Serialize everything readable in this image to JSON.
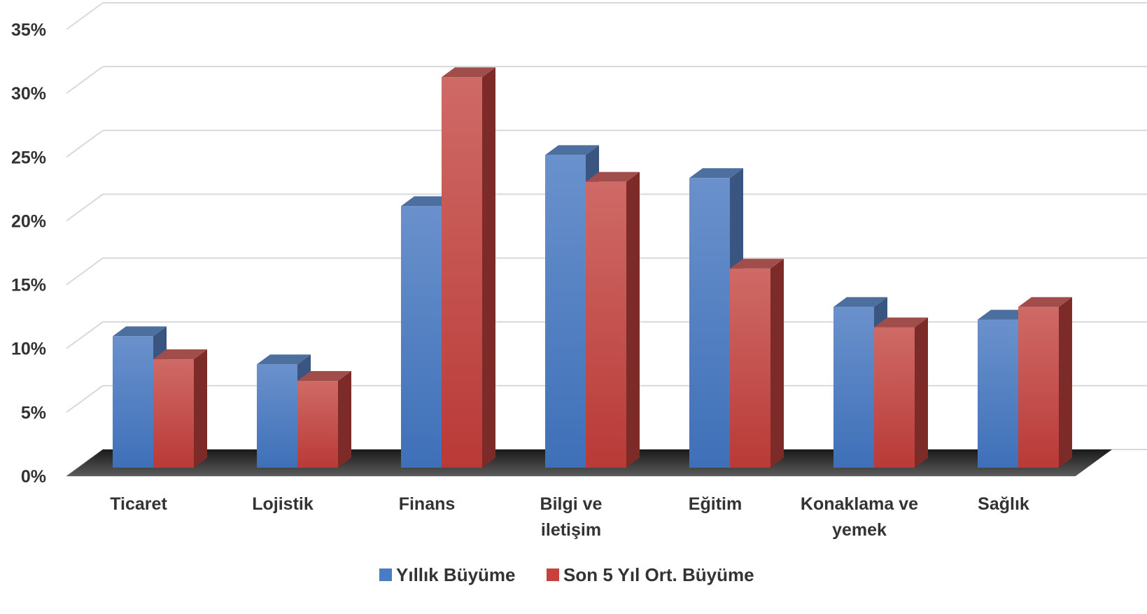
{
  "chart_data": {
    "type": "bar",
    "style": "3d-clustered-column",
    "categories": [
      "Ticaret",
      "Lojistik",
      "Finans",
      "Bilgi ve iletişim",
      "Eğitim",
      "Konaklama ve yemek",
      "Sağlık"
    ],
    "category_lines": [
      [
        "Ticaret"
      ],
      [
        "Lojistik"
      ],
      [
        "Finans"
      ],
      [
        "Bilgi ve",
        "iletişim"
      ],
      [
        "Eğitim"
      ],
      [
        "Konaklama ve",
        "yemek"
      ],
      [
        "Sağlık"
      ]
    ],
    "series": [
      {
        "name": "Yıllık Büyüme",
        "color": "#4a7cc4",
        "values": [
          10.3,
          8.1,
          20.5,
          24.5,
          22.7,
          12.6,
          11.6
        ]
      },
      {
        "name": "Son 5 Yıl Ort. Büyüme",
        "color": "#c9413f",
        "values": [
          8.5,
          6.8,
          30.6,
          22.4,
          15.6,
          11.0,
          12.6
        ]
      }
    ],
    "y_ticks": [
      "0%",
      "5%",
      "10%",
      "15%",
      "20%",
      "25%",
      "30%",
      "35%"
    ],
    "ylim": [
      0,
      35
    ],
    "title": "",
    "xlabel": "",
    "ylabel": "",
    "grid": true,
    "legend_position": "bottom"
  }
}
